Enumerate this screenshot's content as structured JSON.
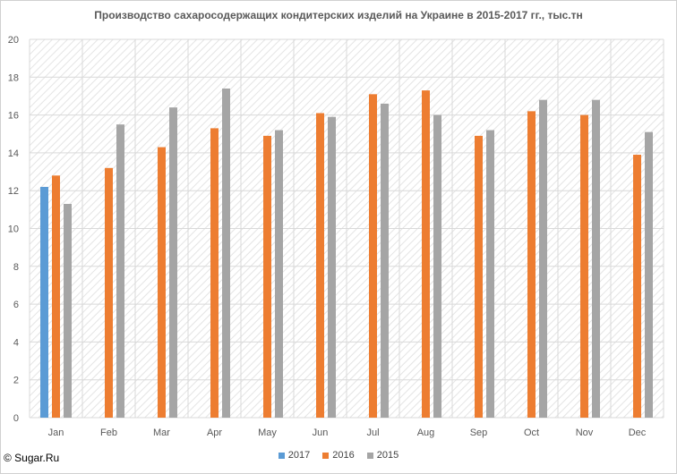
{
  "chart_data": {
    "type": "bar",
    "title": "Производство сахаросодержащих кондитерских изделий на Украине в 2015-2017 гг., тыс.тн",
    "categories": [
      "Jan",
      "Feb",
      "Mar",
      "Apr",
      "May",
      "Jun",
      "Jul",
      "Aug",
      "Sep",
      "Oct",
      "Nov",
      "Dec"
    ],
    "series": [
      {
        "name": "2017",
        "color": "#5b9bd5",
        "values": [
          12.2,
          null,
          null,
          null,
          null,
          null,
          null,
          null,
          null,
          null,
          null,
          null
        ]
      },
      {
        "name": "2016",
        "color": "#ed7d31",
        "values": [
          12.8,
          13.2,
          14.3,
          15.3,
          14.9,
          16.1,
          17.1,
          17.3,
          14.9,
          16.2,
          16.0,
          13.9
        ]
      },
      {
        "name": "2015",
        "color": "#a5a5a5",
        "values": [
          11.3,
          15.5,
          16.4,
          17.4,
          15.2,
          15.9,
          16.6,
          16.0,
          15.2,
          16.8,
          16.8,
          15.1
        ]
      }
    ],
    "yticks": [
      0,
      2,
      4,
      6,
      8,
      10,
      12,
      14,
      16,
      18,
      20
    ],
    "ylim": [
      0,
      20
    ],
    "xlabel": "",
    "ylabel": "",
    "grid": true,
    "legend_position": "bottom"
  },
  "copyright": "© Sugar.Ru"
}
